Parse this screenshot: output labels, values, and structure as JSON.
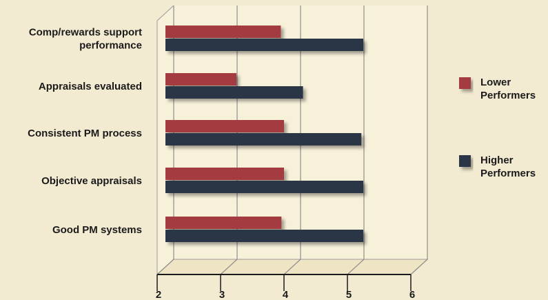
{
  "chart_data": {
    "type": "bar",
    "orientation": "horizontal",
    "categories": [
      [
        "Comp/rewards support",
        "performance"
      ],
      [
        "Appraisals evaluated"
      ],
      [
        "Consistent PM process"
      ],
      [
        "Objective appraisals"
      ],
      [
        "Good PM systems"
      ]
    ],
    "series": [
      {
        "name": [
          "Lower",
          "Performers"
        ],
        "color": "#a33a3f",
        "values": [
          3.95,
          3.25,
          4.0,
          4.0,
          3.96
        ]
      },
      {
        "name": [
          "Higher",
          "Performers"
        ],
        "color": "#2b3544",
        "values": [
          5.25,
          4.3,
          5.22,
          5.25,
          5.25
        ]
      }
    ],
    "xlim": [
      2,
      6
    ],
    "xticks": [
      "2",
      "3",
      "4",
      "5",
      "6"
    ],
    "grid": true,
    "legend_position": "right",
    "background_color": "#f3ebd1",
    "plot_area_color": "#f8f1da"
  }
}
